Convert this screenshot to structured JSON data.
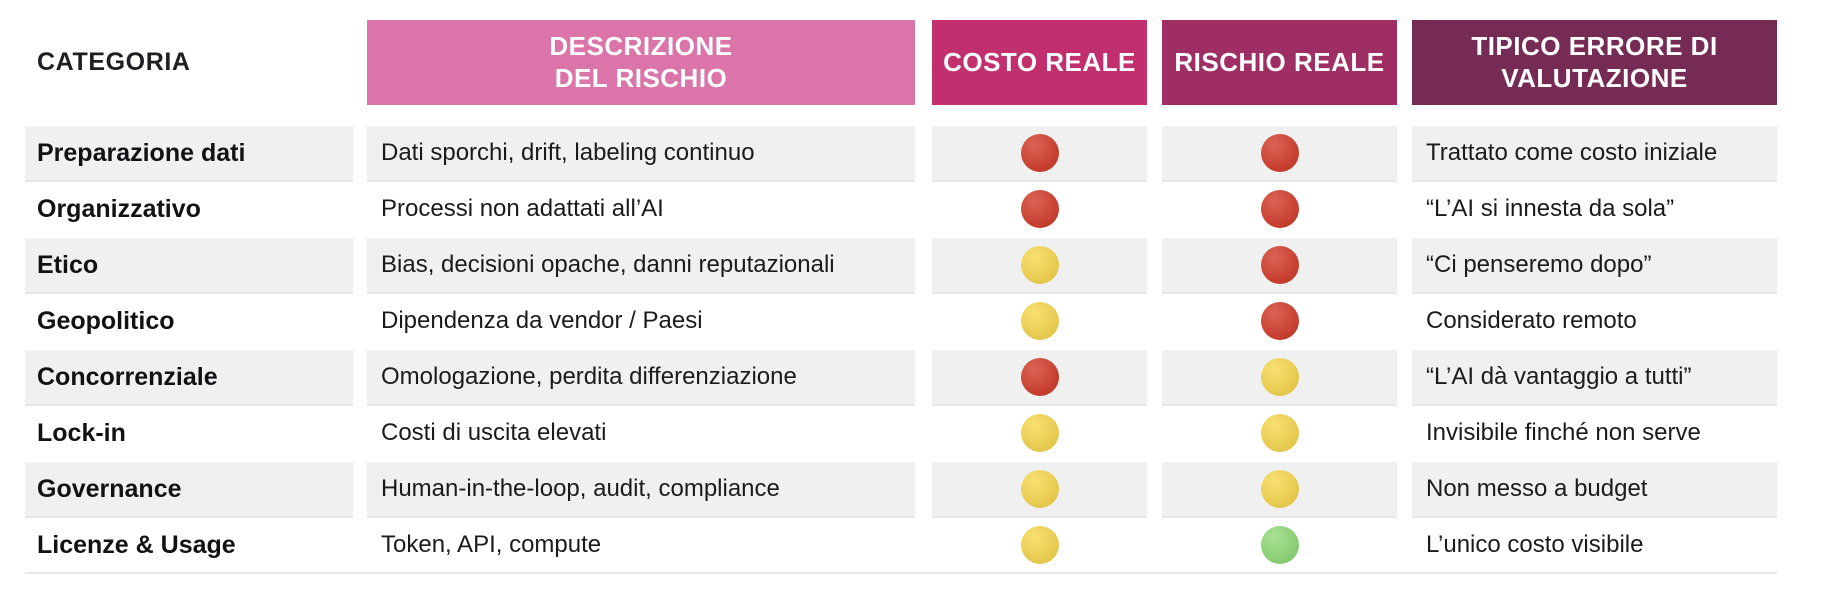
{
  "chart_data": {
    "type": "table",
    "columns": [
      "CATEGORIA",
      "DESCRIZIONE\nDEL RISCHIO",
      "COSTO REALE",
      "RISCHIO REALE",
      "TIPICO ERRORE DI\nVALUTAZIONE"
    ],
    "rows": [
      [
        "Preparazione dati",
        "Dati sporchi, drift, labeling continuo",
        "red",
        "red",
        "Trattato come costo iniziale"
      ],
      [
        "Organizzativo",
        "Processi non adattati all’AI",
        "red",
        "red",
        "“L’AI si innesta da sola”"
      ],
      [
        "Etico",
        "Bias, decisioni opache, danni reputazionali",
        "yellow",
        "red",
        "“Ci penseremo dopo”"
      ],
      [
        "Geopolitico",
        "Dipendenza da vendor / Paesi",
        "yellow",
        "red",
        "Considerato remoto"
      ],
      [
        "Concorrenziale",
        "Omologazione, perdita differenziazione",
        "red",
        "yellow",
        "“L’AI dà vantaggio a tutti”"
      ],
      [
        "Lock-in",
        "Costi di uscita elevati",
        "yellow",
        "yellow",
        "Invisibile finché non serve"
      ],
      [
        "Governance",
        "Human-in-the-loop, audit, compliance",
        "yellow",
        "yellow",
        "Non messo a budget"
      ],
      [
        "Licenze & Usage",
        "Token, API, compute",
        "yellow",
        "green",
        "L’unico costo visibile"
      ]
    ]
  },
  "colors": {
    "header_desc_bg": "#DB74A9",
    "header_costo_bg": "#C12F6E",
    "header_rischio_bg": "#9E2E63",
    "header_errore_bg": "#762B54",
    "header_text": "#FFFFFF",
    "row_alt_bg": "#F0F0F1",
    "body_text": "#1B1B1B",
    "dot_red": "#D33826",
    "dot_yellow": "#F8D84A",
    "dot_green": "#8FDA74"
  }
}
